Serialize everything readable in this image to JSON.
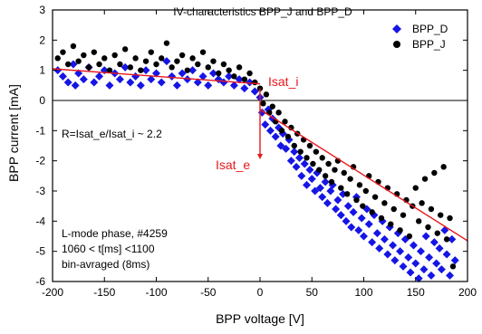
{
  "chart_data": {
    "type": "scatter",
    "title": "IV-characteristics BPP_J and BPP_D",
    "xlabel": "BPP voltage [V]",
    "ylabel": "BPP current [mA]",
    "xlim": [
      -200,
      200
    ],
    "ylim": [
      -6,
      3
    ],
    "xticks": [
      -200,
      -150,
      -100,
      -50,
      0,
      50,
      100,
      150,
      200
    ],
    "yticks": [
      3,
      2,
      1,
      0,
      -1,
      -2,
      -3,
      -4,
      -5,
      -6
    ],
    "grid": false,
    "legend_position": "top-right",
    "series": [
      {
        "name": "BPP_D",
        "marker": "diamond",
        "color": "#1515e6",
        "points": [
          [
            -195,
            1.0
          ],
          [
            -190,
            0.8
          ],
          [
            -185,
            0.6
          ],
          [
            -180,
            1.2
          ],
          [
            -178,
            0.5
          ],
          [
            -175,
            0.9
          ],
          [
            -170,
            0.7
          ],
          [
            -165,
            1.1
          ],
          [
            -160,
            0.6
          ],
          [
            -155,
            0.8
          ],
          [
            -150,
            1.0
          ],
          [
            -145,
            0.5
          ],
          [
            -140,
            0.9
          ],
          [
            -135,
            0.7
          ],
          [
            -130,
            1.1
          ],
          [
            -125,
            0.6
          ],
          [
            -120,
            0.8
          ],
          [
            -115,
            0.5
          ],
          [
            -110,
            1.0
          ],
          [
            -105,
            0.7
          ],
          [
            -100,
            0.9
          ],
          [
            -95,
            0.6
          ],
          [
            -90,
            1.3
          ],
          [
            -85,
            0.8
          ],
          [
            -80,
            0.5
          ],
          [
            -75,
            0.9
          ],
          [
            -70,
            0.7
          ],
          [
            -65,
            1.0
          ],
          [
            -60,
            0.6
          ],
          [
            -55,
            0.8
          ],
          [
            -50,
            0.5
          ],
          [
            -45,
            0.9
          ],
          [
            -40,
            0.7
          ],
          [
            -35,
            0.6
          ],
          [
            -30,
            0.8
          ],
          [
            -25,
            0.5
          ],
          [
            -20,
            0.7
          ],
          [
            -15,
            0.4
          ],
          [
            -10,
            0.6
          ],
          [
            -5,
            0.3
          ],
          [
            0,
            0.1
          ],
          [
            2,
            -0.4
          ],
          [
            5,
            -0.8
          ],
          [
            8,
            -0.3
          ],
          [
            10,
            -1.0
          ],
          [
            12,
            -0.6
          ],
          [
            15,
            -1.2
          ],
          [
            18,
            -0.9
          ],
          [
            20,
            -1.5
          ],
          [
            22,
            -1.1
          ],
          [
            25,
            -1.6
          ],
          [
            28,
            -1.3
          ],
          [
            30,
            -2.0
          ],
          [
            33,
            -1.7
          ],
          [
            35,
            -2.2
          ],
          [
            38,
            -1.9
          ],
          [
            40,
            -2.5
          ],
          [
            43,
            -2.1
          ],
          [
            45,
            -2.8
          ],
          [
            48,
            -2.3
          ],
          [
            50,
            -2.6
          ],
          [
            53,
            -3.0
          ],
          [
            55,
            -2.4
          ],
          [
            58,
            -2.9
          ],
          [
            60,
            -3.2
          ],
          [
            63,
            -2.7
          ],
          [
            65,
            -3.4
          ],
          [
            68,
            -3.0
          ],
          [
            70,
            -2.8
          ],
          [
            73,
            -3.6
          ],
          [
            75,
            -3.3
          ],
          [
            78,
            -3.8
          ],
          [
            80,
            -3.1
          ],
          [
            83,
            -4.0
          ],
          [
            85,
            -3.5
          ],
          [
            88,
            -4.2
          ],
          [
            90,
            -3.7
          ],
          [
            93,
            -3.2
          ],
          [
            95,
            -4.3
          ],
          [
            98,
            -3.9
          ],
          [
            100,
            -4.5
          ],
          [
            103,
            -3.6
          ],
          [
            105,
            -4.1
          ],
          [
            108,
            -4.7
          ],
          [
            110,
            -3.8
          ],
          [
            113,
            -4.4
          ],
          [
            115,
            -4.9
          ],
          [
            118,
            -4.0
          ],
          [
            120,
            -4.6
          ],
          [
            123,
            -5.1
          ],
          [
            125,
            -4.2
          ],
          [
            128,
            -4.8
          ],
          [
            130,
            -5.3
          ],
          [
            133,
            -4.4
          ],
          [
            135,
            -5.0
          ],
          [
            138,
            -5.5
          ],
          [
            140,
            -4.6
          ],
          [
            143,
            -5.2
          ],
          [
            145,
            -5.7
          ],
          [
            148,
            -4.8
          ],
          [
            150,
            -5.4
          ],
          [
            153,
            -5.9
          ],
          [
            155,
            -5.0
          ],
          [
            158,
            -5.6
          ],
          [
            160,
            -4.5
          ],
          [
            163,
            -5.2
          ],
          [
            165,
            -5.8
          ],
          [
            168,
            -4.7
          ],
          [
            170,
            -5.4
          ],
          [
            173,
            -4.9
          ],
          [
            175,
            -5.6
          ],
          [
            178,
            -4.3
          ],
          [
            180,
            -5.1
          ],
          [
            183,
            -5.8
          ],
          [
            185,
            -4.6
          ],
          [
            188,
            -5.3
          ]
        ]
      },
      {
        "name": "BPP_J",
        "marker": "circle",
        "color": "#000000",
        "points": [
          [
            -195,
            1.4
          ],
          [
            -190,
            1.6
          ],
          [
            -185,
            1.2
          ],
          [
            -180,
            1.8
          ],
          [
            -175,
            1.3
          ],
          [
            -170,
            1.5
          ],
          [
            -165,
            1.1
          ],
          [
            -160,
            1.6
          ],
          [
            -155,
            1.2
          ],
          [
            -150,
            1.4
          ],
          [
            -145,
            1.0
          ],
          [
            -140,
            1.5
          ],
          [
            -135,
            1.2
          ],
          [
            -130,
            1.7
          ],
          [
            -125,
            1.1
          ],
          [
            -120,
            1.4
          ],
          [
            -115,
            1.0
          ],
          [
            -110,
            1.3
          ],
          [
            -105,
            1.6
          ],
          [
            -100,
            1.2
          ],
          [
            -95,
            1.4
          ],
          [
            -90,
            1.9
          ],
          [
            -85,
            1.1
          ],
          [
            -80,
            1.3
          ],
          [
            -75,
            1.5
          ],
          [
            -70,
            1.0
          ],
          [
            -65,
            1.4
          ],
          [
            -60,
            1.2
          ],
          [
            -55,
            1.6
          ],
          [
            -50,
            1.1
          ],
          [
            -45,
            1.3
          ],
          [
            -40,
            0.9
          ],
          [
            -35,
            1.2
          ],
          [
            -30,
            1.0
          ],
          [
            -25,
            0.8
          ],
          [
            -20,
            1.1
          ],
          [
            -15,
            0.7
          ],
          [
            -10,
            0.9
          ],
          [
            -5,
            0.6
          ],
          [
            0,
            0.4
          ],
          [
            3,
            -0.1
          ],
          [
            6,
            0.2
          ],
          [
            9,
            -0.4
          ],
          [
            12,
            -0.2
          ],
          [
            15,
            -0.7
          ],
          [
            18,
            -0.4
          ],
          [
            21,
            -1.0
          ],
          [
            24,
            -0.7
          ],
          [
            27,
            -1.2
          ],
          [
            30,
            -0.9
          ],
          [
            33,
            -1.5
          ],
          [
            36,
            -1.1
          ],
          [
            39,
            -1.7
          ],
          [
            42,
            -1.3
          ],
          [
            45,
            -1.9
          ],
          [
            48,
            -1.5
          ],
          [
            51,
            -2.1
          ],
          [
            54,
            -1.7
          ],
          [
            57,
            -2.3
          ],
          [
            60,
            -1.9
          ],
          [
            63,
            -2.5
          ],
          [
            66,
            -2.1
          ],
          [
            69,
            -2.7
          ],
          [
            72,
            -2.3
          ],
          [
            75,
            -2.0
          ],
          [
            78,
            -2.9
          ],
          [
            81,
            -2.4
          ],
          [
            84,
            -3.1
          ],
          [
            87,
            -2.6
          ],
          [
            90,
            -2.2
          ],
          [
            93,
            -3.3
          ],
          [
            96,
            -2.8
          ],
          [
            99,
            -3.5
          ],
          [
            102,
            -3.0
          ],
          [
            105,
            -2.5
          ],
          [
            108,
            -3.7
          ],
          [
            111,
            -3.2
          ],
          [
            114,
            -2.7
          ],
          [
            117,
            -3.9
          ],
          [
            120,
            -3.4
          ],
          [
            123,
            -2.9
          ],
          [
            126,
            -4.1
          ],
          [
            129,
            -3.6
          ],
          [
            132,
            -3.1
          ],
          [
            135,
            -4.3
          ],
          [
            138,
            -3.8
          ],
          [
            141,
            -3.3
          ],
          [
            144,
            -4.5
          ],
          [
            147,
            -3.5
          ],
          [
            150,
            -2.9
          ],
          [
            153,
            -4.0
          ],
          [
            156,
            -3.4
          ],
          [
            159,
            -2.6
          ],
          [
            162,
            -4.2
          ],
          [
            165,
            -3.6
          ],
          [
            168,
            -2.4
          ],
          [
            171,
            -4.4
          ],
          [
            174,
            -3.8
          ],
          [
            177,
            -2.2
          ],
          [
            180,
            -4.6
          ],
          [
            183,
            -3.9
          ],
          [
            186,
            -5.5
          ]
        ]
      }
    ],
    "annotations": {
      "ratio_text": "R=Isat_e/Isat_i ~ 2.2",
      "isat_i_label": "Isat_i",
      "isat_e_label": "Isat_e",
      "info_line1": "L-mode phase, #4259",
      "info_line2": "1060 < t[ms] <1100",
      "info_line3": "bin-avraged (8ms)",
      "red_color": "#e8171b",
      "fit_lines": [
        {
          "from": [
            -200,
            1.05
          ],
          "to": [
            0,
            0.55
          ]
        },
        {
          "from": [
            0,
            -0.3
          ],
          "to": [
            200,
            -4.65
          ]
        }
      ],
      "arrow": {
        "x": 0,
        "from_y": 0.4,
        "to_y": -1.95
      }
    }
  }
}
